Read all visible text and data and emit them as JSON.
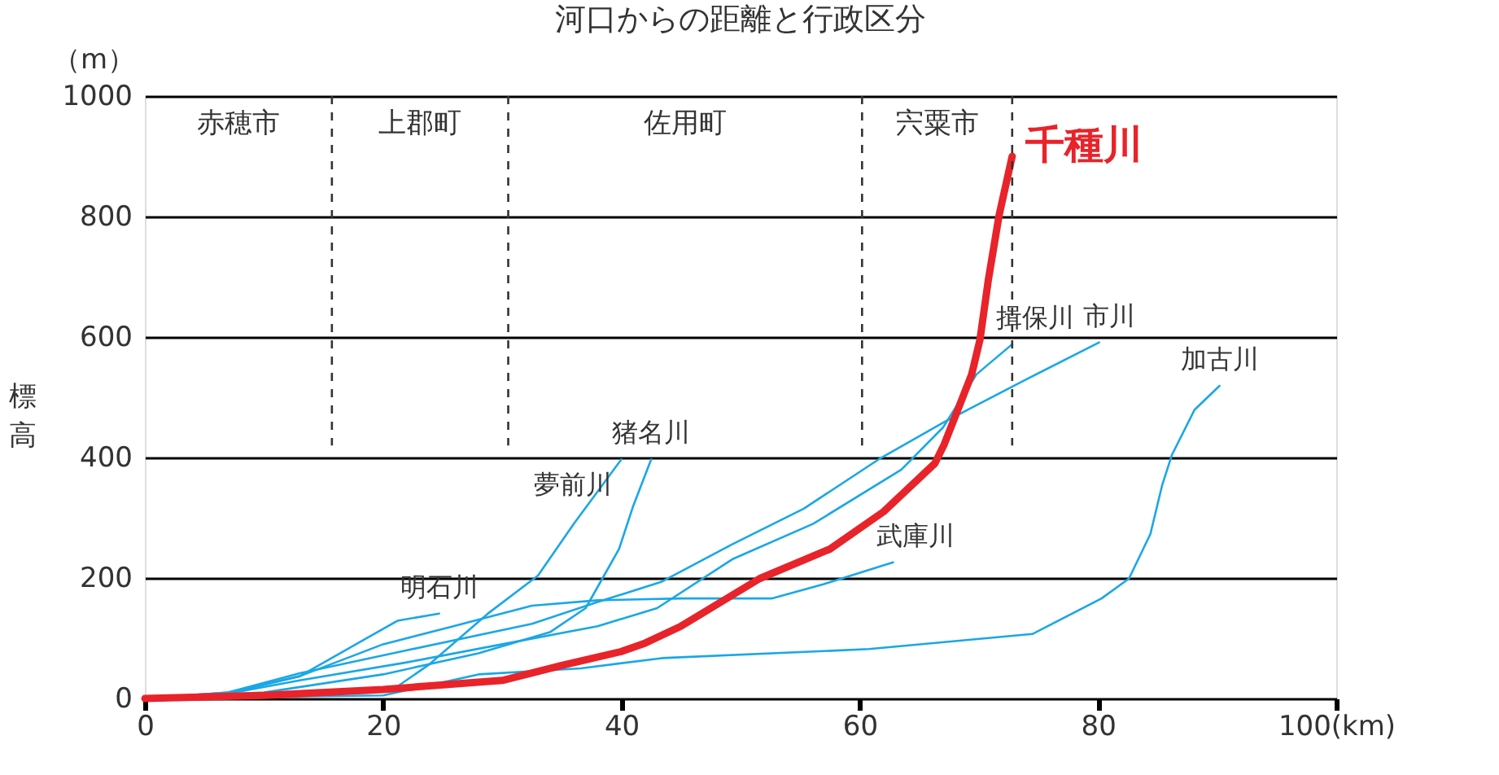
{
  "chart_data": {
    "type": "line",
    "title": "河口からの距離と行政区分",
    "ylabel": "標高",
    "annotations": [
      "（m）",
      "赤穂市",
      "上郡町",
      "佐用町",
      "宍粟市"
    ],
    "xlim": [
      0,
      100
    ],
    "xticks": [
      0,
      20,
      40,
      60,
      80,
      {
        "value": 100,
        "label": "100(km)"
      }
    ],
    "ylim": [
      0,
      1000
    ],
    "yticks": [
      0,
      200,
      400,
      600,
      800,
      1000
    ],
    "grid": "y",
    "line_style": "solid",
    "marker": "none",
    "ref_lines": [
      {
        "axis": "x",
        "value": 15.7,
        "color": "#333333",
        "line_style": "dashed"
      },
      {
        "axis": "x",
        "value": 30.5,
        "color": "#333333",
        "line_style": "dashed"
      },
      {
        "axis": "x",
        "value": 60.2,
        "color": "#333333",
        "line_style": "dashed"
      },
      {
        "axis": "x",
        "value": 72.8,
        "color": "#333333",
        "line_style": "dashed"
      }
    ],
    "series": [
      {
        "name": "明石川",
        "color": "#1aa7e6",
        "x": [
          0,
          7,
          13,
          17.9,
          21.2,
          24.7
        ],
        "values": [
          0,
          8,
          37,
          92,
          129,
          141
        ]
      },
      {
        "name": "夢前川",
        "color": "#1aa7e6",
        "x": [
          0,
          10,
          18,
          21.2,
          23.9,
          28.8,
          33,
          36,
          40
        ],
        "values": [
          0,
          5,
          12,
          20,
          57,
          141,
          204,
          290,
          397
        ]
      },
      {
        "name": "猪名川",
        "color": "#1aa7e6",
        "x": [
          0,
          10,
          20,
          28,
          34,
          37,
          38.4,
          39.8,
          41,
          42.5
        ],
        "values": [
          0,
          10,
          40,
          75,
          110,
          150,
          199,
          248,
          320,
          397
        ]
      },
      {
        "name": "武庫川",
        "color": "#1aa7e6",
        "x": [
          0,
          7,
          13,
          20,
          25.7,
          32.5,
          38,
          45,
          52.6,
          57,
          62.8
        ],
        "values": [
          0,
          10,
          37,
          90,
          119,
          154,
          163,
          166,
          166,
          190,
          226
        ]
      },
      {
        "name": "加古川",
        "color": "#1aa7e6",
        "x": [
          0,
          20,
          28,
          36.6,
          43.4,
          60.8,
          74.5,
          80.3,
          82.6,
          84.4,
          85.4,
          86.2,
          88.1,
          90.2
        ],
        "values": [
          0,
          5,
          40,
          50,
          67,
          82,
          107,
          166,
          199,
          273,
          355,
          404,
          479,
          519
        ]
      },
      {
        "name": "市川",
        "color": "#1aa7e6",
        "x": [
          0,
          7,
          13,
          22,
          32.5,
          38,
          43.4,
          49.3,
          55.3,
          61.6,
          67.1,
          74,
          80.1
        ],
        "values": [
          0,
          10,
          42,
          80,
          124,
          160,
          194,
          256,
          315,
          397,
          459,
          530,
          591
        ]
      },
      {
        "name": "揖保川",
        "color": "#1aa7e6",
        "x": [
          0,
          7,
          13,
          22,
          30,
          38,
          43,
          49.3,
          56.1,
          63.5,
          67,
          69.8,
          72.8
        ],
        "values": [
          0,
          8,
          30,
          60,
          90,
          120,
          150,
          231,
          290,
          380,
          450,
          538,
          588
        ]
      },
      {
        "name": "千種川",
        "color": "#e8232a",
        "x": [
          0,
          10,
          20,
          30,
          35,
          40,
          42,
          45,
          51.6,
          57.5,
          62,
          66.3,
          67.1,
          69.4,
          70.1,
          70.8,
          71.7,
          72.8
        ],
        "values": [
          0,
          5,
          15,
          30,
          55,
          78,
          92,
          120,
          199,
          248,
          310,
          390,
          422,
          538,
          596,
          695,
          802,
          900
        ]
      }
    ]
  }
}
